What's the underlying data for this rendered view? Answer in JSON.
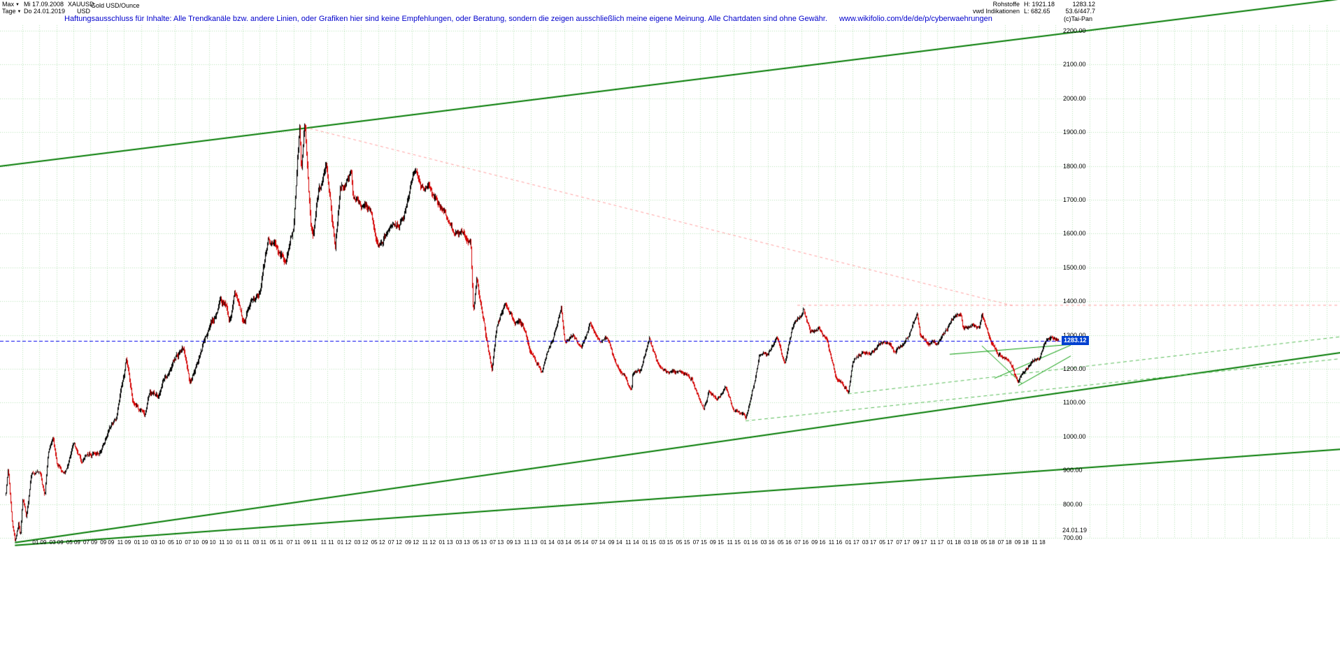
{
  "header": {
    "left": {
      "range": "Max",
      "start_date": "Mi 17.09.2008",
      "symbol": "XAUUSD",
      "name": "Gold USD/Ounce",
      "period": "Tage",
      "end_date": "Do 24.01.2019",
      "currency": "USD"
    },
    "right": {
      "category": "Rohstoffe",
      "high": "H: 1921.18",
      "last": "1283.12",
      "source": "vwd Indikationen",
      "low": "L: 682.65",
      "ratio": "53.6/447.7",
      "copyright": "(c)Tai-Pan"
    }
  },
  "disclaimer": {
    "text": "Haftungsausschluss für Inhalte: Alle Trendkanäle bzw. andere Linien, oder Grafiken hier sind keine Empfehlungen, oder Beratung, sondern die zeigen ausschließlich meine eigene Meinung. Alle Chartdaten sind ohne Gewähr.",
    "url": "www.wikifolio.com/de/de/p/cyberwaehrungen"
  },
  "chart_data": {
    "type": "candlestick",
    "title": "Gold USD/Ounce (XAUUSD), Tageschart Mi 17.09.2008 - Do 24.01.2019",
    "x_unit": "months since 2008-09",
    "ylim": [
      700,
      2200
    ],
    "y_tick_step": 100,
    "high": 1921.18,
    "low": 682.65,
    "last_price": 1283.12,
    "last_date_label": "24.01.19",
    "grid_color": "#b7e3b7",
    "candle_colors": {
      "up": "#000000",
      "down": "#d40000"
    },
    "last_price_line_color": "#0000ee",
    "badge": {
      "bg": "#0040d0",
      "text_color": "#ffffff"
    },
    "y_tick_labels": [
      "2200.00",
      "2100.00",
      "2000.00",
      "1900.00",
      "1800.00",
      "1700.00",
      "1600.00",
      "1500.00",
      "1400.00",
      "1300.00",
      "1200.00",
      "1100.00",
      "1000.00",
      "900.00",
      "800.00",
      "700.00"
    ],
    "x_tick_start_month": 4,
    "x_tick_step_months": 2,
    "x_tick_labels": [
      "01 09",
      "03 09",
      "05 09",
      "07 09",
      "09 09",
      "11 09",
      "01 10",
      "03 10",
      "05 10",
      "07 10",
      "09 10",
      "11 10",
      "01 11",
      "03 11",
      "05 11",
      "07 11",
      "09 11",
      "11 11",
      "01 12",
      "03 12",
      "05 12",
      "07 12",
      "09 12",
      "11 12",
      "01 13",
      "03 13",
      "05 13",
      "07 13",
      "09 13",
      "11 13",
      "01 14",
      "03 14",
      "05 14",
      "07 14",
      "09 14",
      "11 14",
      "01 15",
      "03 15",
      "05 15",
      "07 15",
      "09 15",
      "11 15",
      "01 16",
      "03 16",
      "05 16",
      "07 16",
      "09 16",
      "11 16",
      "01 17",
      "03 17",
      "05 17",
      "07 17",
      "09 17",
      "11 17",
      "01 18",
      "03 18",
      "05 18",
      "07 18",
      "09 18",
      "11 18"
    ],
    "anchors": [
      [
        0,
        830
      ],
      [
        0.25,
        905
      ],
      [
        0.8,
        740
      ],
      [
        1.1,
        688
      ],
      [
        1.5,
        745
      ],
      [
        1.7,
        705
      ],
      [
        2,
        815
      ],
      [
        2.4,
        755
      ],
      [
        3,
        880
      ],
      [
        4,
        915
      ],
      [
        4.6,
        820
      ],
      [
        5,
        940
      ],
      [
        5.6,
        1000
      ],
      [
        6,
        920
      ],
      [
        7,
        890
      ],
      [
        8,
        975
      ],
      [
        9,
        930
      ],
      [
        10,
        955
      ],
      [
        11,
        955
      ],
      [
        12,
        1008
      ],
      [
        13,
        1040
      ],
      [
        14,
        1175
      ],
      [
        14.2,
        1220
      ],
      [
        15,
        1095
      ],
      [
        16,
        1080
      ],
      [
        16.4,
        1052
      ],
      [
        17,
        1118
      ],
      [
        18,
        1115
      ],
      [
        19,
        1180
      ],
      [
        20,
        1215
      ],
      [
        21,
        1244
      ],
      [
        21.7,
        1157
      ],
      [
        22,
        1170
      ],
      [
        23,
        1248
      ],
      [
        24,
        1310
      ],
      [
        25,
        1360
      ],
      [
        25.3,
        1410
      ],
      [
        26,
        1385
      ],
      [
        26.5,
        1340
      ],
      [
        27,
        1420
      ],
      [
        28,
        1335
      ],
      [
        29,
        1410
      ],
      [
        30,
        1430
      ],
      [
        31,
        1565
      ],
      [
        32,
        1535
      ],
      [
        33,
        1500
      ],
      [
        34,
        1630
      ],
      [
        34.7,
        1905
      ],
      [
        34.9,
        1750
      ],
      [
        35.3,
        1918
      ],
      [
        35.6,
        1780
      ],
      [
        36,
        1620
      ],
      [
        36.3,
        1590
      ],
      [
        37,
        1725
      ],
      [
        37.8,
        1795
      ],
      [
        38,
        1745
      ],
      [
        38.9,
        1530
      ],
      [
        39,
        1565
      ],
      [
        39.5,
        1720
      ],
      [
        40,
        1735
      ],
      [
        40.8,
        1785
      ],
      [
        41,
        1710
      ],
      [
        42,
        1670
      ],
      [
        43,
        1665
      ],
      [
        44,
        1560
      ],
      [
        45,
        1600
      ],
      [
        46,
        1615
      ],
      [
        47,
        1655
      ],
      [
        48,
        1775
      ],
      [
        48.3,
        1790
      ],
      [
        49,
        1720
      ],
      [
        50,
        1715
      ],
      [
        51,
        1675
      ],
      [
        52,
        1660
      ],
      [
        53,
        1580
      ],
      [
        54,
        1595
      ],
      [
        54.9,
        1560
      ],
      [
        55.2,
        1360
      ],
      [
        55.6,
        1470
      ],
      [
        56,
        1390
      ],
      [
        57,
        1235
      ],
      [
        57.4,
        1182
      ],
      [
        58,
        1325
      ],
      [
        59,
        1395
      ],
      [
        60,
        1330
      ],
      [
        61,
        1325
      ],
      [
        62,
        1250
      ],
      [
        63,
        1205
      ],
      [
        63.3,
        1185
      ],
      [
        64,
        1245
      ],
      [
        65,
        1325
      ],
      [
        65.6,
        1388
      ],
      [
        66,
        1285
      ],
      [
        67,
        1290
      ],
      [
        68,
        1250
      ],
      [
        69,
        1325
      ],
      [
        70,
        1285
      ],
      [
        71,
        1285
      ],
      [
        72,
        1210
      ],
      [
        73,
        1175
      ],
      [
        73.9,
        1135
      ],
      [
        74,
        1180
      ],
      [
        75,
        1185
      ],
      [
        76,
        1285
      ],
      [
        77,
        1215
      ],
      [
        78,
        1185
      ],
      [
        79,
        1185
      ],
      [
        80,
        1190
      ],
      [
        81,
        1170
      ],
      [
        82,
        1095
      ],
      [
        82.4,
        1077
      ],
      [
        83,
        1135
      ],
      [
        84,
        1115
      ],
      [
        85,
        1140
      ],
      [
        86,
        1065
      ],
      [
        87,
        1060
      ],
      [
        87.4,
        1048
      ],
      [
        88,
        1115
      ],
      [
        89,
        1235
      ],
      [
        90,
        1235
      ],
      [
        91,
        1290
      ],
      [
        92,
        1215
      ],
      [
        93,
        1320
      ],
      [
        94,
        1350
      ],
      [
        94.2,
        1372
      ],
      [
        95,
        1310
      ],
      [
        96,
        1315
      ],
      [
        97,
        1275
      ],
      [
        98,
        1175
      ],
      [
        99,
        1150
      ],
      [
        99.5,
        1127
      ],
      [
        100,
        1210
      ],
      [
        101,
        1250
      ],
      [
        102,
        1250
      ],
      [
        103,
        1265
      ],
      [
        104,
        1270
      ],
      [
        105,
        1240
      ],
      [
        106,
        1270
      ],
      [
        107,
        1320
      ],
      [
        107.6,
        1352
      ],
      [
        108,
        1290
      ],
      [
        109,
        1270
      ],
      [
        110,
        1275
      ],
      [
        111,
        1300
      ],
      [
        112,
        1345
      ],
      [
        112.8,
        1362
      ],
      [
        113,
        1320
      ],
      [
        114,
        1325
      ],
      [
        115,
        1315
      ],
      [
        115.3,
        1355
      ],
      [
        116,
        1300
      ],
      [
        117,
        1250
      ],
      [
        118,
        1225
      ],
      [
        119,
        1200
      ],
      [
        119.5,
        1162
      ],
      [
        120,
        1190
      ],
      [
        121,
        1215
      ],
      [
        122,
        1220
      ],
      [
        123,
        1280
      ],
      [
        124,
        1283
      ],
      [
        124.3,
        1283.12
      ]
    ],
    "overlays": [
      {
        "name": "upper-trend-channel-line",
        "color": "#007a00",
        "width": 2,
        "dash": [],
        "points": [
          [
            -0.7,
            1799
          ],
          [
            157.7,
            2294
          ]
        ]
      },
      {
        "name": "lower-support-line-main",
        "color": "#007a00",
        "width": 2,
        "dash": [],
        "points": [
          [
            1.1,
            686
          ],
          [
            157.7,
            1248
          ]
        ]
      },
      {
        "name": "lower-support-line-flat",
        "color": "#007a00",
        "width": 2,
        "dash": [],
        "points": [
          [
            1.1,
            678
          ],
          [
            157.7,
            962
          ]
        ]
      },
      {
        "name": "wedge-resistance-line",
        "color": "#009900",
        "width": 1,
        "dash": [],
        "points": [
          [
            111.5,
            1243
          ],
          [
            125.8,
            1272
          ]
        ]
      },
      {
        "name": "wedge-rising-line-a",
        "color": "#009900",
        "width": 1,
        "dash": [],
        "points": [
          [
            116.8,
            1172
          ],
          [
            125.8,
            1270
          ]
        ]
      },
      {
        "name": "wedge-rising-line-b",
        "color": "#009900",
        "width": 1,
        "dash": [],
        "points": [
          [
            119.6,
            1150
          ],
          [
            125.8,
            1238
          ]
        ]
      },
      {
        "name": "wedge-falling-line",
        "color": "#009900",
        "width": 1,
        "dash": [],
        "points": [
          [
            115.3,
            1268
          ],
          [
            120.0,
            1157
          ]
        ]
      },
      {
        "name": "support-projection-dashed-a",
        "color": "#55bb55",
        "width": 1,
        "dash": [
          5,
          4
        ],
        "points": [
          [
            87.4,
            1046
          ],
          [
            157.7,
            1230
          ]
        ]
      },
      {
        "name": "support-projection-dashed-b",
        "color": "#55bb55",
        "width": 1,
        "dash": [
          5,
          4
        ],
        "points": [
          [
            99.5,
            1126
          ],
          [
            157.7,
            1295
          ]
        ]
      },
      {
        "name": "downtrend-from-peak-dashed",
        "color": "#ff9e9e",
        "width": 1,
        "dash": [
          4,
          4
        ],
        "points": [
          [
            35.3,
            1915
          ],
          [
            119.2,
            1385
          ]
        ]
      },
      {
        "name": "horizontal-resistance-dashed",
        "color": "#ff9e9e",
        "width": 1,
        "dash": [
          4,
          4
        ],
        "points": [
          [
            93.5,
            1388
          ],
          [
            157.7,
            1388
          ]
        ]
      }
    ]
  }
}
